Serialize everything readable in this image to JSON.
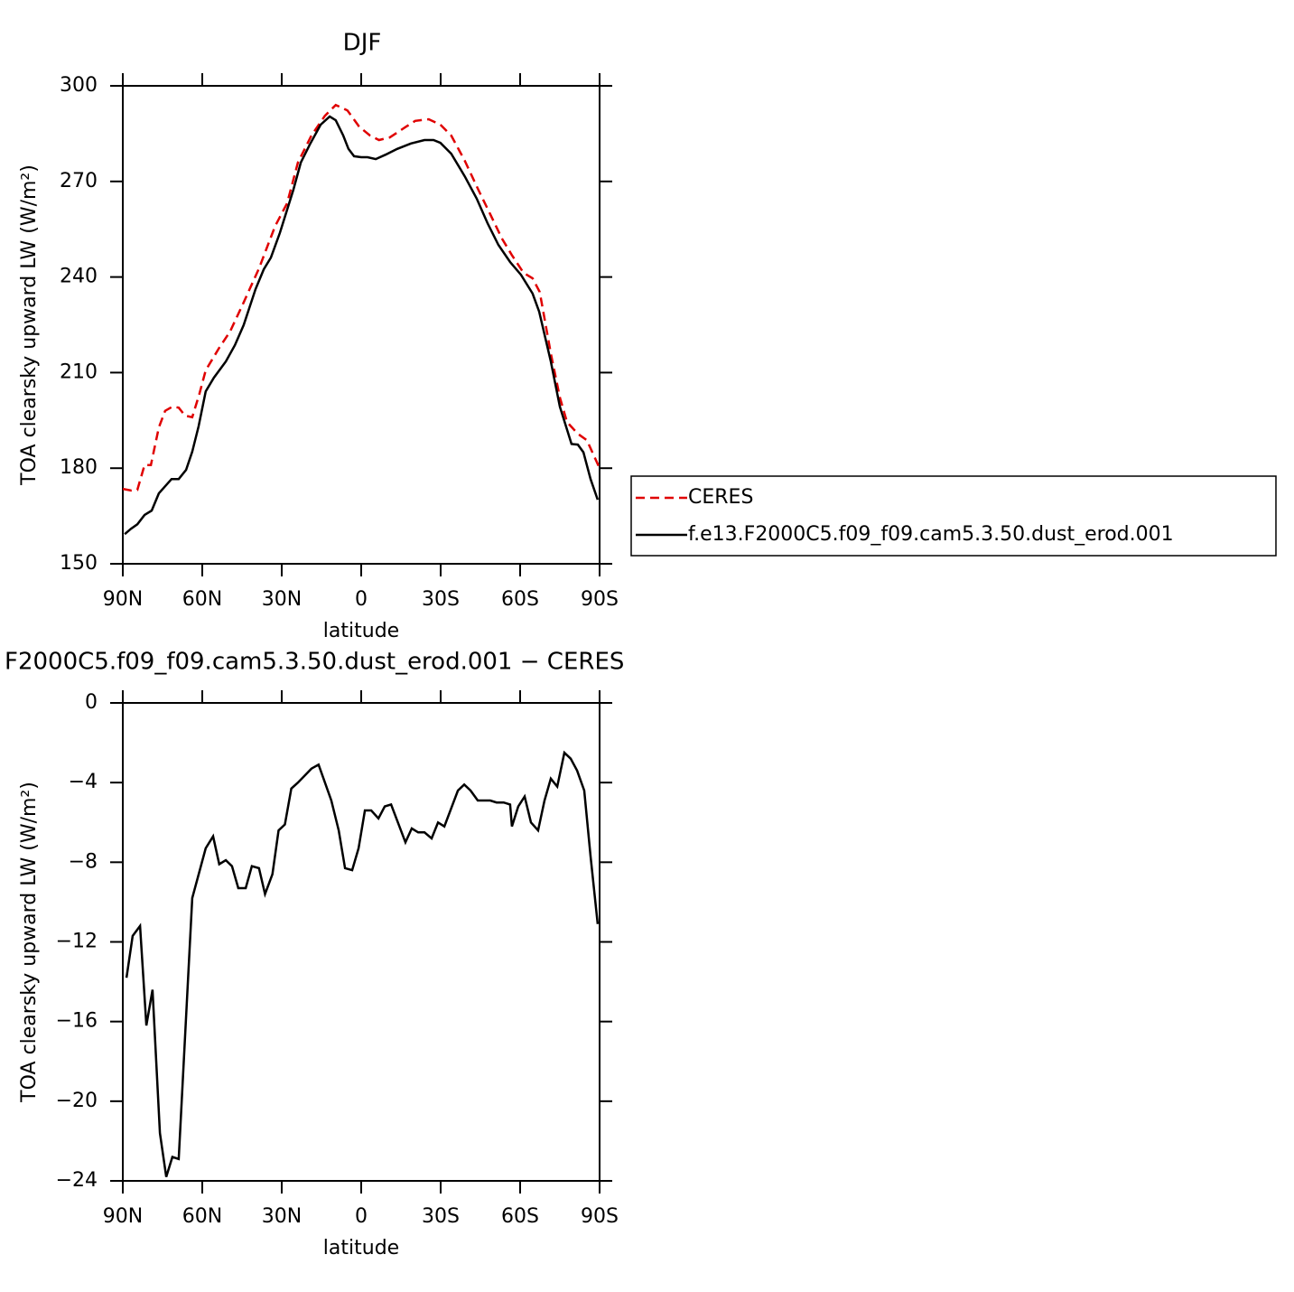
{
  "chart_data": [
    {
      "type": "line",
      "title": "DJF",
      "xlabel": "latitude",
      "ylabel": "TOA clearsky upward LW (W/m²)",
      "xlim": [
        90,
        -90
      ],
      "xticks": [
        {
          "value": 90,
          "label": "90N"
        },
        {
          "value": 60,
          "label": "60N"
        },
        {
          "value": 30,
          "label": "30N"
        },
        0,
        {
          "value": -30,
          "label": "30S"
        },
        {
          "value": -60,
          "label": "60S"
        },
        {
          "value": -90,
          "label": "90S"
        }
      ],
      "ylim": [
        150,
        300
      ],
      "yticks": [
        150,
        180,
        210,
        240,
        270,
        300
      ],
      "legend": "right",
      "series": [
        {
          "name": "CERES",
          "color": "#e00000",
          "linestyle": "dashed",
          "x": [
            90,
            86.9,
            84.5,
            81.8,
            79.4,
            76.4,
            74.0,
            71.3,
            68.9,
            66.5,
            63.8,
            61.1,
            58.7,
            53.6,
            49.5,
            44.4,
            38.6,
            32.5,
            28.0,
            23.9,
            18.8,
            13.7,
            9.6,
            5.2,
            0.8,
            -3.3,
            -6.7,
            -10.8,
            -17.0,
            -20.4,
            -25.5,
            -29.9,
            -34.0,
            -39.1,
            -44.2,
            -48.7,
            -53.1,
            -56.8,
            -61.3,
            -64.7,
            -67.4,
            -71.6,
            -75.0,
            -77.7,
            -81.8,
            -85.2,
            -90
          ],
          "values": [
            173.5,
            173,
            173.2,
            181,
            181,
            192.8,
            198,
            199.3,
            199,
            196.5,
            196,
            203.3,
            210.7,
            217.8,
            222.9,
            232,
            242.7,
            256,
            263.1,
            275.9,
            284.4,
            290.6,
            294,
            292.3,
            287.2,
            284.4,
            283,
            283.8,
            287.2,
            289,
            289.5,
            287.8,
            284.4,
            276.5,
            267.4,
            259.7,
            252.1,
            247,
            241.3,
            239.6,
            235.3,
            216,
            202.2,
            194.5,
            190.8,
            188.8,
            180
          ]
        },
        {
          "name": "f.e13.F2000C5.f09_f09.cam5.3.50.dust_erod.001",
          "color": "#000000",
          "linestyle": "solid",
          "x": [
            89.3,
            86.9,
            84.5,
            81.8,
            79.1,
            76.4,
            71.6,
            68.9,
            66.1,
            63.8,
            61.4,
            58.7,
            55.6,
            51.1,
            47.7,
            44.4,
            39.9,
            36.8,
            34.1,
            30.7,
            25.6,
            22.8,
            19.4,
            15.3,
            11.9,
            9.6,
            6.8,
            4.8,
            2.7,
            0,
            -2.4,
            -5.5,
            -9.2,
            -13.6,
            -18.8,
            -23.9,
            -27.3,
            -29.9,
            -34.0,
            -39.1,
            -43.6,
            -47.7,
            -51.8,
            -56.2,
            -60.3,
            -64.7,
            -67.2,
            -71.6,
            -75.0,
            -79.4,
            -81.8,
            -83.9,
            -86.6,
            -89.3
          ],
          "values": [
            159.3,
            161,
            162.4,
            165.3,
            166.7,
            172.1,
            176.6,
            176.6,
            179.5,
            185.2,
            193.1,
            204.1,
            208.4,
            213.5,
            218.6,
            224.9,
            236.2,
            242.4,
            246.1,
            253.8,
            267.4,
            275.9,
            281.6,
            287.8,
            290.4,
            289.2,
            284.4,
            280.2,
            277.9,
            277.6,
            277.6,
            277,
            278.4,
            280.2,
            281.9,
            283,
            283,
            282.1,
            278.7,
            271.6,
            264.6,
            256.9,
            250.1,
            244.7,
            240.7,
            234.8,
            229.1,
            213.5,
            199.3,
            187.6,
            187.4,
            185,
            176.6,
            170.1
          ]
        }
      ]
    },
    {
      "type": "line",
      "title": "F2000C5.f09_f09.cam5.3.50.dust_erod.001 − CERES",
      "xlabel": "latitude",
      "ylabel": "TOA clearsky upward LW (W/m²)",
      "xlim": [
        90,
        -90
      ],
      "xticks": [
        {
          "value": 90,
          "label": "90N"
        },
        {
          "value": 60,
          "label": "60N"
        },
        {
          "value": 30,
          "label": "30N"
        },
        0,
        {
          "value": -30,
          "label": "30S"
        },
        {
          "value": -60,
          "label": "60S"
        },
        {
          "value": -90,
          "label": "90S"
        }
      ],
      "ylim": [
        -24,
        0
      ],
      "yticks": [
        {
          "value": -24,
          "label": "−24"
        },
        {
          "value": -20,
          "label": "−20"
        },
        {
          "value": -16,
          "label": "−16"
        },
        {
          "value": -12,
          "label": "−12"
        },
        {
          "value": -8,
          "label": "−8"
        },
        {
          "value": -4,
          "label": "−4"
        },
        0
      ],
      "series": [
        {
          "color": "#000000",
          "linestyle": "solid",
          "x": [
            88.6,
            86.3,
            83.5,
            81.1,
            78.8,
            76.0,
            73.6,
            71.3,
            68.9,
            63.8,
            58.7,
            55.9,
            53.6,
            51.1,
            48.8,
            46.4,
            43.6,
            41.3,
            38.6,
            36.3,
            33.5,
            31.2,
            28.8,
            26.4,
            23.9,
            18.8,
            16.1,
            11.3,
            8.5,
            6.1,
            3.4,
            1.0,
            -1.4,
            -3.8,
            -6.5,
            -8.9,
            -11.3,
            -16.7,
            -19.1,
            -21.5,
            -23.9,
            -26.6,
            -29.0,
            -31.4,
            -36.5,
            -38.9,
            -41.3,
            -44.0,
            -48.7,
            -51.1,
            -53.8,
            -56.2,
            -56.9,
            -59.3,
            -61.7,
            -64.1,
            -66.8,
            -69.2,
            -71.6,
            -74.0,
            -76.7,
            -79.1,
            -81.5,
            -84.2,
            -86.6,
            -89.3
          ],
          "values": [
            -13.8,
            -11.7,
            -11.2,
            -16.2,
            -14.4,
            -21.6,
            -23.8,
            -22.8,
            -22.9,
            -9.8,
            -7.3,
            -6.7,
            -8.1,
            -7.9,
            -8.2,
            -9.3,
            -9.3,
            -8.2,
            -8.3,
            -9.6,
            -8.6,
            -6.4,
            -6.1,
            -4.3,
            -4.0,
            -3.3,
            -3.1,
            -4.9,
            -6.4,
            -8.3,
            -8.4,
            -7.3,
            -5.4,
            -5.4,
            -5.8,
            -5.2,
            -5.1,
            -7.0,
            -6.3,
            -6.5,
            -6.5,
            -6.8,
            -6.0,
            -6.2,
            -4.4,
            -4.1,
            -4.4,
            -4.9,
            -4.9,
            -5.0,
            -5.0,
            -5.1,
            -6.2,
            -5.2,
            -4.7,
            -6.0,
            -6.4,
            -4.9,
            -3.8,
            -4.2,
            -2.5,
            -2.8,
            -3.4,
            -4.4,
            -7.7,
            -11.1
          ]
        }
      ]
    }
  ]
}
